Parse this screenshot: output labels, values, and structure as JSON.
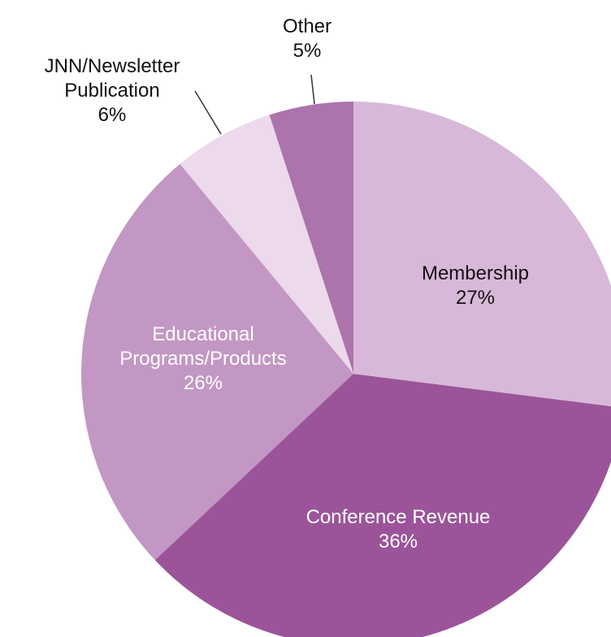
{
  "chart_data": {
    "type": "pie",
    "categories": [
      "Membership",
      "Conference Revenue",
      "Educational Programs/Products",
      "JNN/Newsletter Publication",
      "Other"
    ],
    "values": [
      27,
      36,
      26,
      6,
      5
    ],
    "value_labels": [
      "27%",
      "36%",
      "26%",
      "6%",
      "5%"
    ],
    "colors": [
      "#d8b8d8",
      "#9b5499",
      "#c397c3",
      "#ecd9eb",
      "#ad73ad"
    ],
    "start_angle": 90,
    "direction": "clockwise"
  }
}
